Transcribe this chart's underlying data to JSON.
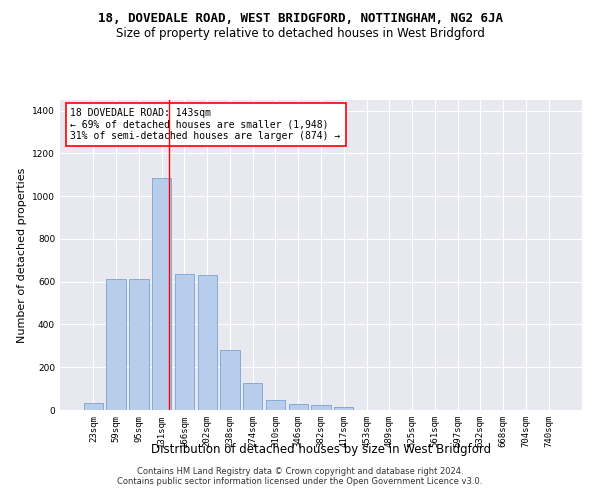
{
  "title": "18, DOVEDALE ROAD, WEST BRIDGFORD, NOTTINGHAM, NG2 6JA",
  "subtitle": "Size of property relative to detached houses in West Bridgford",
  "xlabel": "Distribution of detached houses by size in West Bridgford",
  "ylabel": "Number of detached properties",
  "categories": [
    "23sqm",
    "59sqm",
    "95sqm",
    "131sqm",
    "166sqm",
    "202sqm",
    "238sqm",
    "274sqm",
    "310sqm",
    "346sqm",
    "382sqm",
    "417sqm",
    "453sqm",
    "489sqm",
    "525sqm",
    "561sqm",
    "597sqm",
    "632sqm",
    "668sqm",
    "704sqm",
    "740sqm"
  ],
  "values": [
    33,
    612,
    615,
    1085,
    635,
    632,
    280,
    125,
    47,
    27,
    22,
    13,
    0,
    0,
    0,
    0,
    0,
    0,
    0,
    0,
    0
  ],
  "bar_color": "#b8cceb",
  "bar_edge_color": "#6699cc",
  "vline_color": "red",
  "annotation_line1": "18 DOVEDALE ROAD: 143sqm",
  "annotation_line2": "← 69% of detached houses are smaller (1,948)",
  "annotation_line3": "31% of semi-detached houses are larger (874) →",
  "ylim": [
    0,
    1450
  ],
  "yticks": [
    0,
    200,
    400,
    600,
    800,
    1000,
    1200,
    1400
  ],
  "plot_bg_color": "#e8e8f0",
  "grid_color": "white",
  "footer_line1": "Contains HM Land Registry data © Crown copyright and database right 2024.",
  "footer_line2": "Contains public sector information licensed under the Open Government Licence v3.0.",
  "title_fontsize": 9,
  "subtitle_fontsize": 8.5,
  "axis_label_fontsize": 8,
  "tick_fontsize": 6.5,
  "annotation_fontsize": 7,
  "footer_fontsize": 6
}
